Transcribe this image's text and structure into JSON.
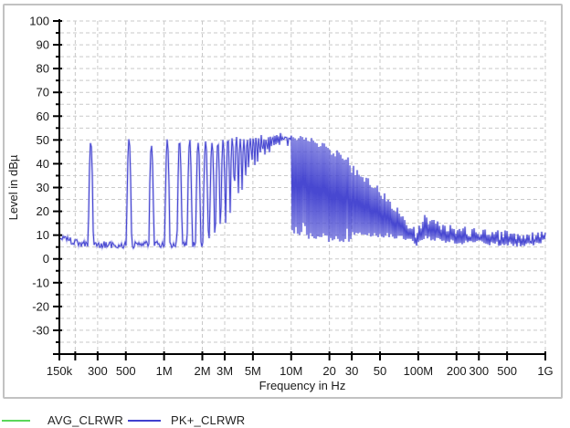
{
  "colors": {
    "background": "#ffffff",
    "panel_border": "#c2c2c2",
    "grid": "#c9c9c9",
    "axis": "#000000",
    "text": "#1a1a1a",
    "trace_pk": "#4040cf",
    "trace_pk_halo": "#9b9be9",
    "trace_avg": "#5bd75b"
  },
  "chart_data": {
    "type": "line",
    "title": "",
    "xlabel": "Frequency in Hz",
    "ylabel": "Level in dBµ",
    "x_scale": "log",
    "x_range_hz": [
      150000,
      1000000000
    ],
    "y_range_db": [
      -40,
      100
    ],
    "y_major_tick_db": 10,
    "y_minor_tick_db": 5,
    "y_tick_labels": [
      "100",
      "90",
      "80",
      "70",
      "60",
      "50",
      "40",
      "30",
      "20",
      "10",
      "0",
      "-10",
      "-20",
      "-30"
    ],
    "grid": {
      "show": true,
      "h_step_db": 5,
      "dash": [
        4,
        3
      ]
    },
    "legend_position": "bottom-left",
    "x_ticks": [
      {
        "hz": 150000,
        "label": "150k",
        "grid": false
      },
      {
        "hz": 200000,
        "label": "",
        "grid": true
      },
      {
        "hz": 300000,
        "label": "300",
        "grid": true
      },
      {
        "hz": 500000,
        "label": "500",
        "grid": true
      },
      {
        "hz": 1000000,
        "label": "1M",
        "grid": true
      },
      {
        "hz": 2000000,
        "label": "2M",
        "grid": true
      },
      {
        "hz": 3000000,
        "label": "3M",
        "grid": true
      },
      {
        "hz": 5000000,
        "label": "5M",
        "grid": true
      },
      {
        "hz": 10000000,
        "label": "10M",
        "grid": true
      },
      {
        "hz": 20000000,
        "label": "20",
        "grid": true
      },
      {
        "hz": 30000000,
        "label": "30",
        "grid": true
      },
      {
        "hz": 50000000,
        "label": "50",
        "grid": true
      },
      {
        "hz": 100000000,
        "label": "100M",
        "grid": true
      },
      {
        "hz": 200000000,
        "label": "200",
        "grid": true
      },
      {
        "hz": 300000000,
        "label": "300",
        "grid": true
      },
      {
        "hz": 500000000,
        "label": "500",
        "grid": true
      },
      {
        "hz": 1000000000,
        "label": "1G",
        "grid": true
      }
    ],
    "series": [
      {
        "name": "AVG_CLRWR",
        "color": "#5bd75b",
        "shown_in_plot": false
      },
      {
        "name": "PK+_CLRWR",
        "color": "#4040cf",
        "shown_in_plot": true,
        "comb_fundamental_hz": 265000,
        "comb_end_mhz": 29.6,
        "comb_peak_envelope_mhz_db": [
          [
            0.2,
            46
          ],
          [
            0.27,
            50
          ],
          [
            0.5,
            51.5
          ],
          [
            0.8,
            48.5
          ],
          [
            1.05,
            50.5
          ],
          [
            1.35,
            49.5
          ],
          [
            1.62,
            50
          ],
          [
            1.9,
            49
          ],
          [
            2.15,
            50.5
          ],
          [
            2.65,
            49.5
          ],
          [
            3.2,
            50
          ],
          [
            3.7,
            50.5
          ],
          [
            4.2,
            49.5
          ],
          [
            5,
            51
          ],
          [
            6,
            51
          ],
          [
            7,
            51.5
          ],
          [
            8,
            52
          ],
          [
            9,
            52
          ],
          [
            10,
            51.5
          ],
          [
            11,
            51
          ],
          [
            12,
            50.5
          ],
          [
            13.5,
            50
          ],
          [
            15,
            49
          ],
          [
            17,
            47.5
          ],
          [
            19,
            46.5
          ],
          [
            21,
            45
          ],
          [
            23,
            44
          ],
          [
            25,
            43
          ],
          [
            27,
            42
          ],
          [
            29.6,
            40.5
          ]
        ],
        "noise_floor_mhz_db": [
          [
            0.15,
            8.5
          ],
          [
            0.17,
            8.8
          ],
          [
            0.19,
            7
          ],
          [
            0.23,
            6.3
          ],
          [
            0.3,
            6.2
          ],
          [
            0.4,
            5.8
          ],
          [
            0.55,
            5.6
          ],
          [
            0.7,
            6.6
          ],
          [
            0.85,
            6.2
          ],
          [
            1.0,
            5.9
          ],
          [
            1.3,
            6.4
          ],
          [
            1.7,
            6.2
          ],
          [
            2.2,
            6.6
          ],
          [
            3,
            7
          ],
          [
            4,
            7.6
          ],
          [
            5,
            8
          ],
          [
            6.5,
            9
          ],
          [
            8,
            10
          ],
          [
            9.5,
            11
          ],
          [
            11,
            11
          ],
          [
            13,
            10.5
          ],
          [
            16,
            10
          ],
          [
            20,
            9.5
          ],
          [
            24,
            9
          ],
          [
            29.5,
            8
          ]
        ],
        "band_top_mhz_db": [
          [
            29.7,
            38
          ],
          [
            31,
            37.5
          ],
          [
            33,
            36.5
          ],
          [
            35,
            35.5
          ],
          [
            38,
            34
          ],
          [
            41,
            32.5
          ],
          [
            45,
            30.5
          ],
          [
            50,
            28
          ],
          [
            55,
            26
          ],
          [
            60,
            24
          ],
          [
            65,
            21.5
          ],
          [
            70,
            19
          ],
          [
            75,
            17
          ],
          [
            80,
            15.5
          ],
          [
            85,
            14
          ],
          [
            90,
            13
          ],
          [
            95,
            11
          ],
          [
            99,
            9.5
          ],
          [
            103,
            13
          ],
          [
            108,
            16.5
          ],
          [
            113,
            17
          ],
          [
            118,
            16.5
          ],
          [
            125,
            15.5
          ],
          [
            135,
            14.5
          ],
          [
            150,
            13.5
          ],
          [
            170,
            13
          ],
          [
            200,
            12
          ],
          [
            240,
            11.5
          ],
          [
            300,
            11
          ],
          [
            360,
            10.5
          ],
          [
            430,
            10
          ],
          [
            520,
            10
          ],
          [
            620,
            9.5
          ],
          [
            720,
            9
          ],
          [
            820,
            9.5
          ],
          [
            920,
            10.5
          ],
          [
            1000,
            11.5
          ]
        ],
        "band_bottom_mhz_db": [
          [
            29.7,
            10
          ],
          [
            35,
            9.5
          ],
          [
            45,
            9
          ],
          [
            55,
            9
          ],
          [
            65,
            8.5
          ],
          [
            75,
            8
          ],
          [
            85,
            7
          ],
          [
            92,
            6
          ],
          [
            99,
            5
          ],
          [
            105,
            7
          ],
          [
            115,
            8
          ],
          [
            130,
            7.5
          ],
          [
            150,
            7
          ],
          [
            180,
            6.5
          ],
          [
            220,
            6
          ],
          [
            300,
            6
          ],
          [
            400,
            5.5
          ],
          [
            550,
            5
          ],
          [
            700,
            5
          ],
          [
            850,
            5.5
          ],
          [
            1000,
            6.5
          ]
        ]
      }
    ]
  },
  "legend": {
    "items": [
      {
        "label": "AVG_CLRWR"
      },
      {
        "label": "PK+_CLRWR"
      }
    ]
  }
}
